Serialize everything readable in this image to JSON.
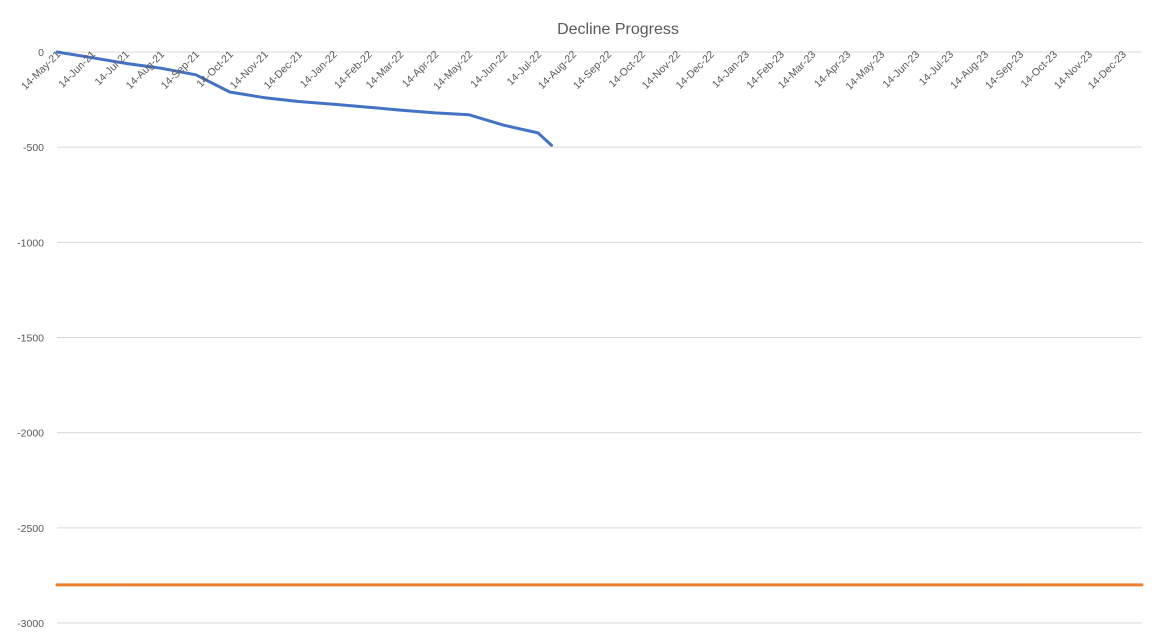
{
  "chart_data": {
    "type": "line",
    "title": "Decline Progress",
    "xlabel": "",
    "ylabel": "",
    "x_tick_labels": [
      "14-May-21",
      "14-Jun-21",
      "14-Jul-21",
      "14-Aug-21",
      "14-Sep-21",
      "14-Oct-21",
      "14-Nov-21",
      "14-Dec-21",
      "14-Jan-22",
      "14-Feb-22",
      "14-Mar-22",
      "14-Apr-22",
      "14-May-22",
      "14-Jun-22",
      "14-Jul-22",
      "14-Aug-22",
      "14-Sep-22",
      "14-Oct-22",
      "14-Nov-22",
      "14-Dec-22",
      "14-Jan-23",
      "14-Feb-23",
      "14-Mar-23",
      "14-Apr-23",
      "14-May-23",
      "14-Jun-23",
      "14-Jul-23",
      "14-Aug-23",
      "14-Sep-23",
      "14-Oct-23",
      "14-Nov-23",
      "14-Dec-23"
    ],
    "xlim": [
      "2021-05-14",
      "2023-12-31"
    ],
    "ylim": [
      -3000,
      0
    ],
    "y_ticks": [
      0,
      -500,
      -1000,
      -1500,
      -2000,
      -2500,
      -3000
    ],
    "y_tick_labels": [
      "0",
      "-500",
      "-1000",
      "-1500",
      "-2000",
      "-2500",
      "-3000"
    ],
    "grid": true,
    "legend": "none",
    "series": [
      {
        "color": "#4472C4",
        "points": [
          {
            "x": "2021-05-14",
            "y": 0
          },
          {
            "x": "2021-06-14",
            "y": -30
          },
          {
            "x": "2021-07-14",
            "y": -60
          },
          {
            "x": "2021-08-14",
            "y": -85
          },
          {
            "x": "2021-09-14",
            "y": -120
          },
          {
            "x": "2021-10-14",
            "y": -210
          },
          {
            "x": "2021-11-14",
            "y": -240
          },
          {
            "x": "2021-12-14",
            "y": -260
          },
          {
            "x": "2022-01-14",
            "y": -275
          },
          {
            "x": "2022-02-14",
            "y": -290
          },
          {
            "x": "2022-03-14",
            "y": -305
          },
          {
            "x": "2022-04-14",
            "y": -320
          },
          {
            "x": "2022-05-14",
            "y": -330
          },
          {
            "x": "2022-06-14",
            "y": -385
          },
          {
            "x": "2022-07-14",
            "y": -425
          },
          {
            "x": "2022-07-26",
            "y": -490
          }
        ]
      },
      {
        "color": "#ED7D31",
        "points": [
          {
            "x": "2021-05-14",
            "y": -2800
          },
          {
            "x": "2023-12-31",
            "y": -2800
          }
        ]
      }
    ]
  }
}
